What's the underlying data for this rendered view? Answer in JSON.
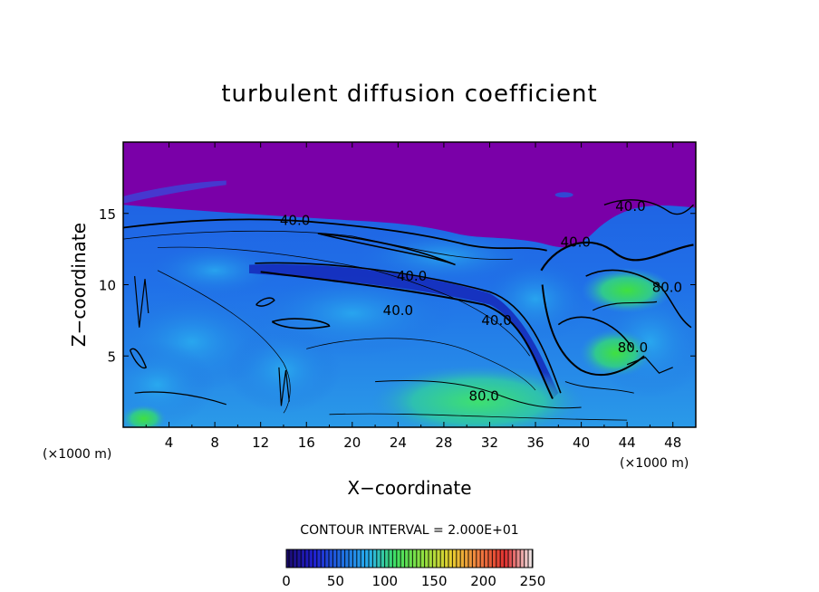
{
  "chart_data": {
    "type": "heatmap",
    "title": "turbulent diffusion coefficient",
    "xlabel": "X−coordinate",
    "ylabel": "Z−coordinate",
    "x_unit": "(×1000 m)",
    "xlim": [
      0,
      50
    ],
    "ylim": [
      0,
      20
    ],
    "x_ticks": [
      4,
      8,
      12,
      16,
      20,
      24,
      28,
      32,
      36,
      40,
      44,
      48
    ],
    "y_ticks": [
      5,
      10,
      15
    ],
    "contour_interval_text": "CONTOUR INTERVAL = 2.000E+01",
    "colorbar": {
      "ticks": [
        0,
        50,
        100,
        150,
        200,
        250
      ],
      "range": [
        0,
        250
      ],
      "colors": [
        "#1a0a6a",
        "#2020d0",
        "#1e6ae0",
        "#28b0f0",
        "#40e060",
        "#90e040",
        "#e8d030",
        "#f08040",
        "#e03030",
        "#f0f0f0"
      ]
    },
    "field": {
      "upper_value": 0,
      "upper_color": "#7a00a8",
      "description_colors": {
        "low": "#1428c8",
        "mid": "#2878e8",
        "high": "#30c890",
        "peak": "#40e040"
      }
    },
    "contour_labels": [
      {
        "text": "40.0",
        "x": 15.0,
        "z": 14.5
      },
      {
        "text": "40.0",
        "x": 25.2,
        "z": 10.6
      },
      {
        "text": "40.0",
        "x": 24.0,
        "z": 8.2
      },
      {
        "text": "40.0",
        "x": 32.6,
        "z": 7.5
      },
      {
        "text": "80.0",
        "x": 31.5,
        "z": 2.2
      },
      {
        "text": "80.0",
        "x": 44.5,
        "z": 5.6
      },
      {
        "text": "40.0",
        "x": 44.3,
        "z": 15.5
      },
      {
        "text": "40.0",
        "x": 39.5,
        "z": 13.0
      },
      {
        "text": "80.0",
        "x": 47.5,
        "z": 9.8
      }
    ]
  }
}
